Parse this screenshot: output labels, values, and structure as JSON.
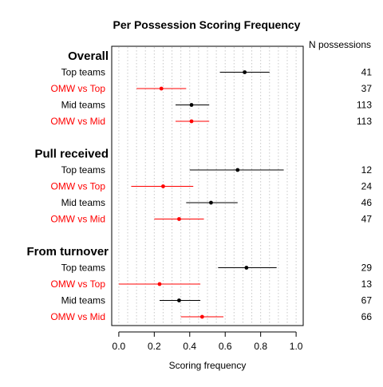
{
  "chart_data": {
    "type": "scatter",
    "title": "Per Possession Scoring Frequency",
    "xlabel": "Scoring frequency",
    "ylabel": "",
    "xlim": [
      -0.04,
      1.04
    ],
    "xticks": [
      "0.0",
      "0.2",
      "0.4",
      "0.6",
      "0.8",
      "1.0"
    ],
    "grid": "vertical-dotted",
    "count_column_header": "N possessions",
    "colors": {
      "top": "#000000",
      "omw": "#ff0000"
    },
    "groups": [
      {
        "name": "Overall",
        "rows": [
          {
            "label": "Top teams",
            "color": "#000000",
            "estimate": 0.71,
            "low": 0.57,
            "high": 0.85,
            "n": "41"
          },
          {
            "label": "OMW vs Top",
            "color": "#ff0000",
            "estimate": 0.24,
            "low": 0.1,
            "high": 0.38,
            "n": "37"
          },
          {
            "label": "Mid teams",
            "color": "#000000",
            "estimate": 0.41,
            "low": 0.32,
            "high": 0.51,
            "n": "113"
          },
          {
            "label": "OMW vs Mid",
            "color": "#ff0000",
            "estimate": 0.41,
            "low": 0.32,
            "high": 0.51,
            "n": "113"
          }
        ]
      },
      {
        "name": "Pull received",
        "rows": [
          {
            "label": "Top teams",
            "color": "#000000",
            "estimate": 0.67,
            "low": 0.4,
            "high": 0.93,
            "n": "12"
          },
          {
            "label": "OMW vs Top",
            "color": "#ff0000",
            "estimate": 0.25,
            "low": 0.07,
            "high": 0.42,
            "n": "24"
          },
          {
            "label": "Mid teams",
            "color": "#000000",
            "estimate": 0.52,
            "low": 0.38,
            "high": 0.67,
            "n": "46"
          },
          {
            "label": "OMW vs Mid",
            "color": "#ff0000",
            "estimate": 0.34,
            "low": 0.2,
            "high": 0.48,
            "n": "47"
          }
        ]
      },
      {
        "name": "From turnover",
        "rows": [
          {
            "label": "Top teams",
            "color": "#000000",
            "estimate": 0.72,
            "low": 0.56,
            "high": 0.89,
            "n": "29"
          },
          {
            "label": "OMW vs Top",
            "color": "#ff0000",
            "estimate": 0.23,
            "low": 0.0,
            "high": 0.46,
            "n": "13"
          },
          {
            "label": "Mid teams",
            "color": "#000000",
            "estimate": 0.34,
            "low": 0.23,
            "high": 0.46,
            "n": "67"
          },
          {
            "label": "OMW vs Mid",
            "color": "#ff0000",
            "estimate": 0.47,
            "low": 0.35,
            "high": 0.59,
            "n": "66"
          }
        ]
      }
    ]
  }
}
